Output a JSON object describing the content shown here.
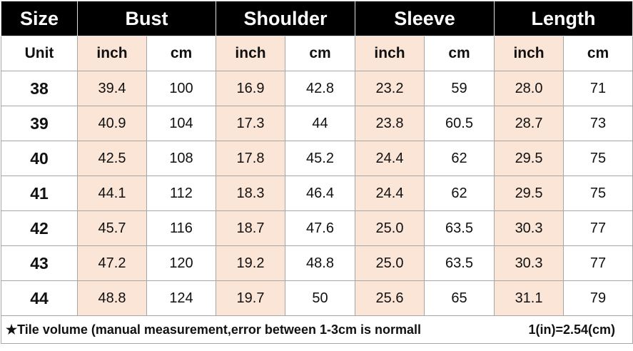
{
  "header": {
    "size": "Size",
    "groups": [
      "Bust",
      "Shoulder",
      "Sleeve",
      "Length"
    ]
  },
  "units": [
    "Unit",
    "inch",
    "cm",
    "inch",
    "cm",
    "inch",
    "cm",
    "inch",
    "cm"
  ],
  "rows": [
    [
      "38",
      "39.4",
      "100",
      "16.9",
      "42.8",
      "23.2",
      "59",
      "28.0",
      "71"
    ],
    [
      "39",
      "40.9",
      "104",
      "17.3",
      "44",
      "23.8",
      "60.5",
      "28.7",
      "73"
    ],
    [
      "40",
      "42.5",
      "108",
      "17.8",
      "45.2",
      "24.4",
      "62",
      "29.5",
      "75"
    ],
    [
      "41",
      "44.1",
      "112",
      "18.3",
      "46.4",
      "24.4",
      "62",
      "29.5",
      "75"
    ],
    [
      "42",
      "45.7",
      "116",
      "18.7",
      "47.6",
      "25.0",
      "63.5",
      "30.3",
      "77"
    ],
    [
      "43",
      "47.2",
      "120",
      "19.2",
      "48.8",
      "25.0",
      "63.5",
      "30.3",
      "77"
    ],
    [
      "44",
      "48.8",
      "124",
      "19.7",
      "50",
      "25.6",
      "65",
      "31.1",
      "79"
    ]
  ],
  "footer": {
    "note": "★Tile volume (manual measurement,error between 1-3cm is normall",
    "conversion": "1(in)=2.54(cm)"
  }
}
